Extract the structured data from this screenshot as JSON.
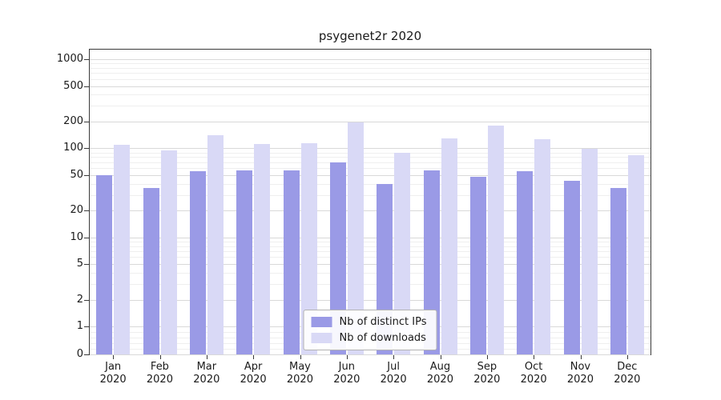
{
  "chart_data": {
    "type": "bar",
    "title": "psygenet2r 2020",
    "yscale": "symlog",
    "grid": true,
    "legend_position": "lower center",
    "categories": [
      "Jan 2020",
      "Feb 2020",
      "Mar 2020",
      "Apr 2020",
      "May 2020",
      "Jun 2020",
      "Jul 2020",
      "Aug 2020",
      "Sep 2020",
      "Oct 2020",
      "Nov 2020",
      "Dec 2020"
    ],
    "series": [
      {
        "name": "Nb of distinct IPs",
        "color": "#9a9ae6",
        "values": [
          50,
          36,
          55,
          57,
          56,
          70,
          40,
          56,
          48,
          55,
          43,
          36
        ]
      },
      {
        "name": "Nb of downloads",
        "color": "#d9d9f6",
        "values": [
          110,
          95,
          140,
          112,
          115,
          195,
          90,
          130,
          180,
          128,
          98,
          83
        ]
      }
    ],
    "y_ticks": [
      0,
      1,
      2,
      5,
      10,
      20,
      50,
      100,
      200,
      500,
      1000
    ],
    "ylim": [
      0,
      1300
    ],
    "xlabel": "",
    "ylabel": ""
  },
  "colors": {
    "grid_major": "#d9d9d9",
    "grid_minor": "#efefef",
    "axis": "#3a3a3a",
    "text": "#1a1a1a",
    "legend_border": "#b3b3b3"
  }
}
